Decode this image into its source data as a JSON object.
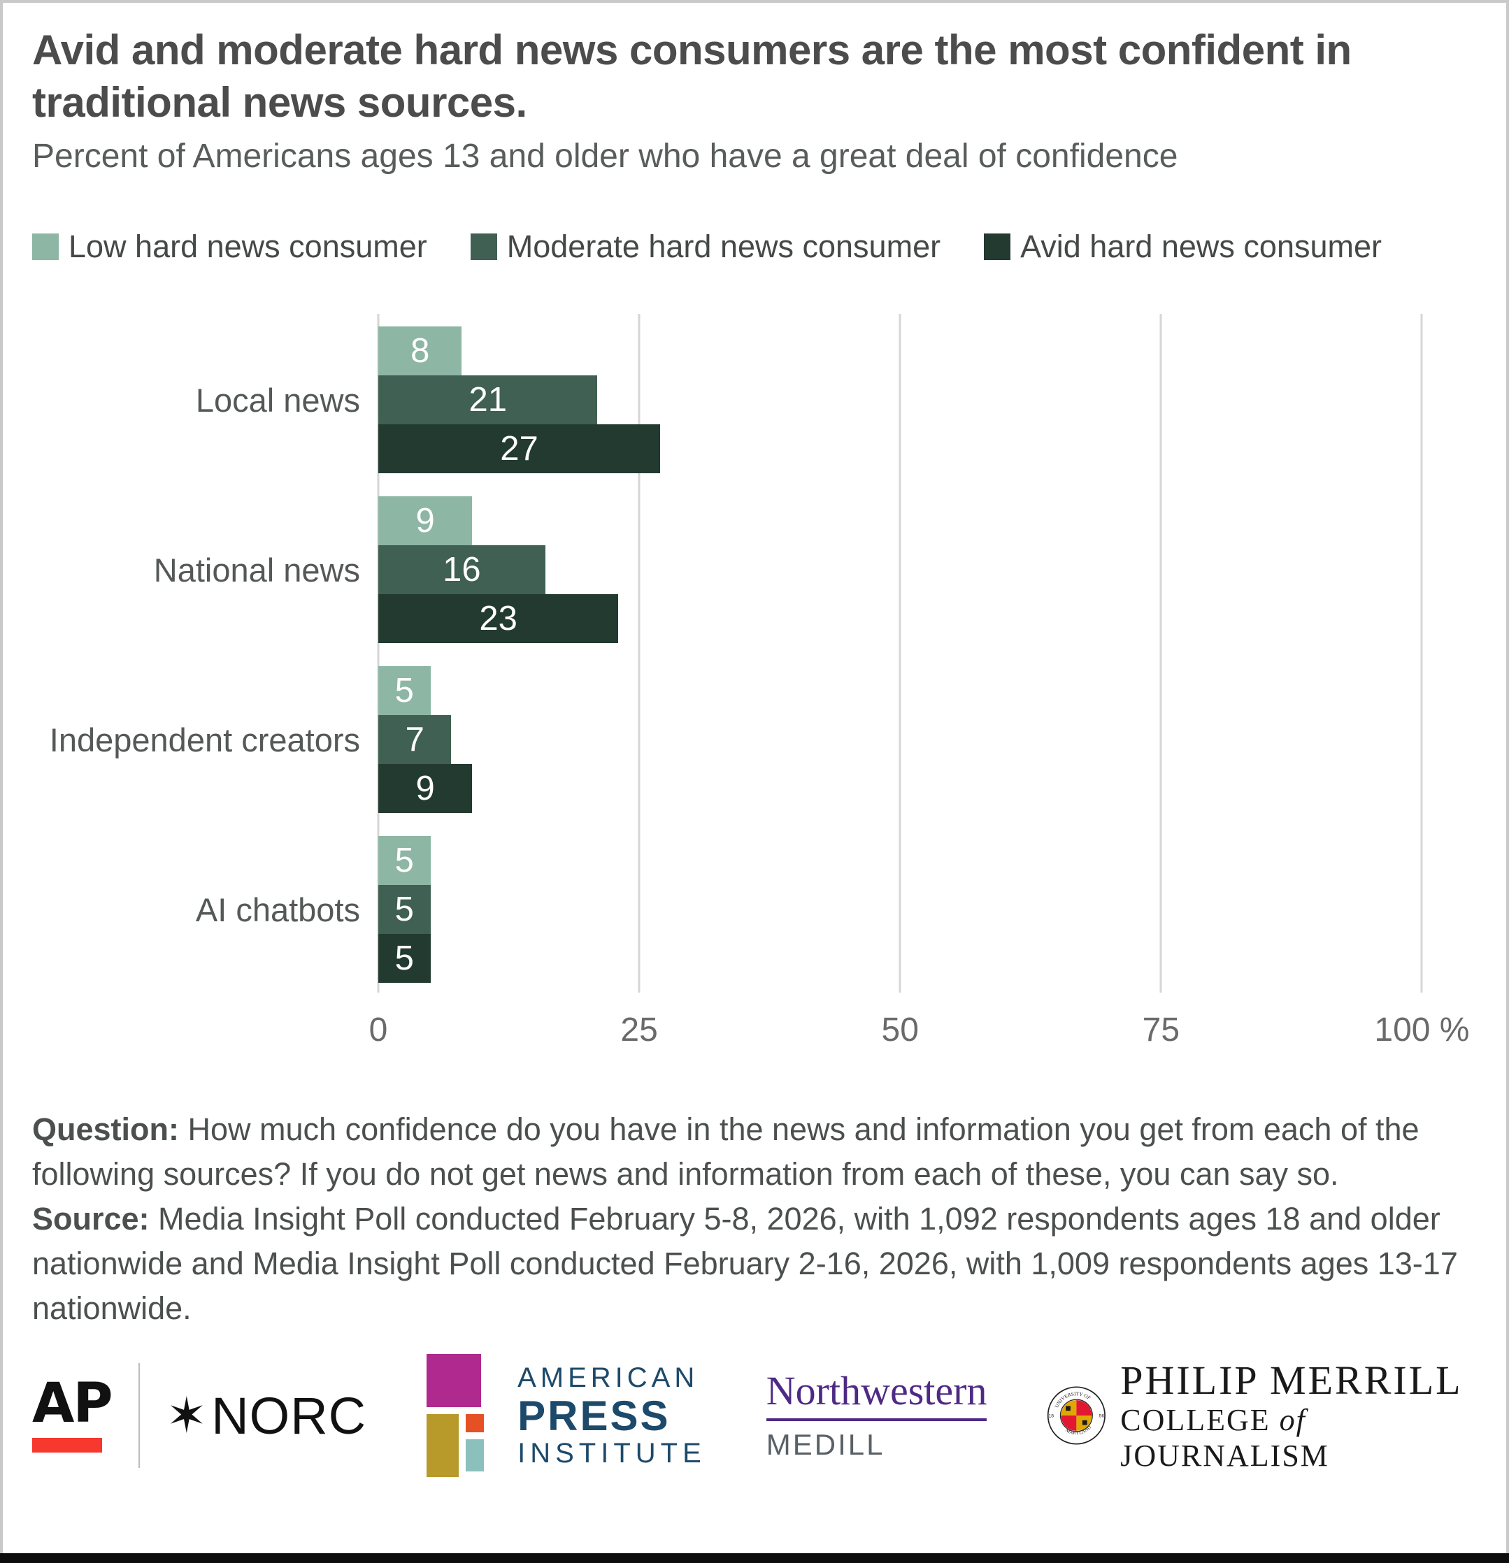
{
  "chart_data": {
    "type": "bar",
    "orientation": "horizontal",
    "title": "Avid and moderate hard news consumers are the most confident in traditional news sources.",
    "subtitle": "Percent of Americans ages 13 and older who have a great deal of confidence",
    "categories": [
      "Local news",
      "National news",
      "Independent creators",
      "AI chatbots"
    ],
    "series": [
      {
        "name": "Low hard news consumer",
        "color": "#8db6a4",
        "values": [
          8,
          9,
          5,
          5
        ]
      },
      {
        "name": "Moderate hard news consumer",
        "color": "#3f6052",
        "values": [
          21,
          16,
          7,
          5
        ]
      },
      {
        "name": "Avid hard news consumer",
        "color": "#233a30",
        "values": [
          27,
          23,
          9,
          5
        ]
      }
    ],
    "xlabel": "",
    "ylabel": "",
    "xlim": [
      0,
      100
    ],
    "x_ticks": [
      0,
      25,
      50,
      75,
      100
    ],
    "x_tick_labels": [
      "0",
      "25",
      "50",
      "75",
      "100 %"
    ],
    "grid": "vertical",
    "gridline_color": "#d6d6d6",
    "legend_position": "top",
    "value_labels": "inside-center-white"
  },
  "legend": [
    {
      "label": "Low hard news consumer",
      "color": "#8db6a4"
    },
    {
      "label": "Moderate hard news consumer",
      "color": "#3f6052"
    },
    {
      "label": "Avid hard news consumer",
      "color": "#233a30"
    }
  ],
  "notes": {
    "question_label": "Question:",
    "question_text": " How much confidence do you have in the news and information you get from each of the following sources? If you do not get news and information from each of these, you can say so.",
    "source_label": "Source:",
    "source_text": " Media Insight Poll conducted February 5-8, 2026, with 1,092 respondents ages 18 and older nationwide and Media Insight Poll conducted February 2-16, 2026, with 1,009 respondents ages 13-17 nationwide."
  },
  "logos": {
    "ap": "AP",
    "norc_star": "✶",
    "norc": "NORC",
    "api": {
      "line1": "AMERICAN",
      "line2": "PRESS",
      "line3": "INSTITUTE"
    },
    "northwestern": "Northwestern",
    "medill": "MEDILL",
    "umd_seal": {
      "ring_top": "UNIVERSITY OF",
      "ring_bottom": "MARYLAND",
      "year_left": "18",
      "year_right": "56"
    },
    "merrill": {
      "line1": "PHILIP MERRILL",
      "college": "COLLEGE ",
      "of": "of",
      "journalism": " JOURNALISM"
    }
  },
  "colors": {
    "ap_red": "#f6382e",
    "api_navy": "#1d4a6b",
    "northwestern_purple": "#4e2a84",
    "medill_gray": "#5a6166",
    "title_gray": "#4c4c4c"
  }
}
